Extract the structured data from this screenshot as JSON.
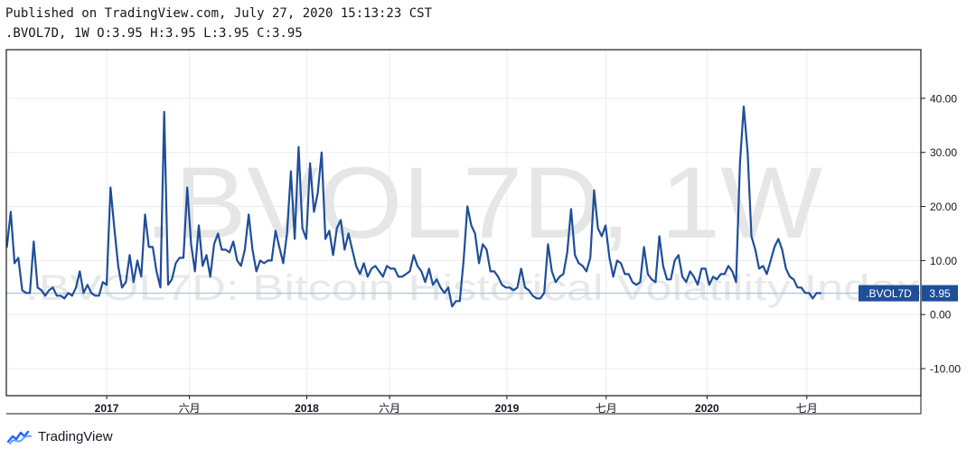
{
  "header": {
    "published": "Published on TradingView.com, July 27, 2020 15:13:23 CST",
    "ohlc": ".BVOL7D, 1W O:3.95 H:3.95 L:3.95 C:3.95"
  },
  "watermark": {
    "big": ".BVOL7D, 1W",
    "small": ".BVOL7D: Bitcoin Historical Volatility Index"
  },
  "brand": {
    "name": "TradingView"
  },
  "colors": {
    "line": "#1f4e99",
    "grid": "#e9ecf2",
    "axis": "#131722",
    "watermark": "#e6e6e6",
    "lastPrice": "#9db7d6",
    "badge": "#1f4e99"
  },
  "chart_data": {
    "type": "line",
    "symbol": ".BVOL7D",
    "interval": "1W",
    "ylim": [
      -15,
      49
    ],
    "y_ticks": [
      40,
      30,
      20,
      10,
      0,
      -10
    ],
    "y_tick_labels": [
      "40.00",
      "30.00",
      "20.00",
      "10.00",
      "0.00",
      "-10.00"
    ],
    "x_ticks": [
      {
        "label": "2017",
        "bold": true,
        "x": "2017-01-01"
      },
      {
        "label": "六月",
        "bold": false,
        "x": "2017-06-01"
      },
      {
        "label": "2018",
        "bold": true,
        "x": "2018-01-01"
      },
      {
        "label": "六月",
        "bold": false,
        "x": "2018-06-01"
      },
      {
        "label": "2019",
        "bold": true,
        "x": "2019-01-01"
      },
      {
        "label": "七月",
        "bold": false,
        "x": "2019-07-01"
      },
      {
        "label": "2020",
        "bold": true,
        "x": "2020-01-01"
      },
      {
        "label": "七月",
        "bold": false,
        "x": "2020-07-01"
      }
    ],
    "last_value": 3.95,
    "last_label": ".BVOL7D",
    "last_value_label": "3.95",
    "series": [
      {
        "values": [
          [
            "2016-07-03",
            12.5
          ],
          [
            "2016-07-10",
            19
          ],
          [
            "2016-07-17",
            9.5
          ],
          [
            "2016-07-24",
            10.5
          ],
          [
            "2016-07-31",
            4.5
          ],
          [
            "2016-08-07",
            4
          ],
          [
            "2016-08-14",
            4
          ],
          [
            "2016-08-21",
            13.5
          ],
          [
            "2016-08-28",
            5
          ],
          [
            "2016-09-04",
            4.5
          ],
          [
            "2016-09-11",
            3.5
          ],
          [
            "2016-09-18",
            4.5
          ],
          [
            "2016-09-25",
            5
          ],
          [
            "2016-10-02",
            3.5
          ],
          [
            "2016-10-09",
            3.5
          ],
          [
            "2016-10-16",
            3
          ],
          [
            "2016-10-23",
            4
          ],
          [
            "2016-10-30",
            3.5
          ],
          [
            "2016-11-06",
            5
          ],
          [
            "2016-11-13",
            8
          ],
          [
            "2016-11-20",
            4
          ],
          [
            "2016-11-27",
            5.5
          ],
          [
            "2016-12-04",
            4
          ],
          [
            "2016-12-11",
            3.5
          ],
          [
            "2016-12-18",
            3.5
          ],
          [
            "2016-12-25",
            6
          ],
          [
            "2017-01-01",
            5.5
          ],
          [
            "2017-01-08",
            23.5
          ],
          [
            "2017-01-15",
            16
          ],
          [
            "2017-01-22",
            9
          ],
          [
            "2017-01-29",
            5
          ],
          [
            "2017-02-05",
            6
          ],
          [
            "2017-02-12",
            11
          ],
          [
            "2017-02-19",
            6
          ],
          [
            "2017-02-26",
            10
          ],
          [
            "2017-03-05",
            7
          ],
          [
            "2017-03-12",
            18.5
          ],
          [
            "2017-03-19",
            12.5
          ],
          [
            "2017-03-26",
            12.5
          ],
          [
            "2017-04-02",
            8
          ],
          [
            "2017-04-09",
            5
          ],
          [
            "2017-04-16",
            37.5
          ],
          [
            "2017-04-23",
            5.5
          ],
          [
            "2017-04-30",
            6.5
          ],
          [
            "2017-05-07",
            9.5
          ],
          [
            "2017-05-14",
            10.5
          ],
          [
            "2017-05-21",
            10.5
          ],
          [
            "2017-05-28",
            23.5
          ],
          [
            "2017-06-04",
            13
          ],
          [
            "2017-06-11",
            8
          ],
          [
            "2017-06-18",
            16.5
          ],
          [
            "2017-06-25",
            9
          ],
          [
            "2017-07-02",
            11
          ],
          [
            "2017-07-09",
            7
          ],
          [
            "2017-07-16",
            13
          ],
          [
            "2017-07-23",
            15
          ],
          [
            "2017-07-30",
            12
          ],
          [
            "2017-08-06",
            12
          ],
          [
            "2017-08-13",
            11.5
          ],
          [
            "2017-08-20",
            13.5
          ],
          [
            "2017-08-27",
            10
          ],
          [
            "2017-09-03",
            9
          ],
          [
            "2017-09-10",
            12
          ],
          [
            "2017-09-17",
            18.5
          ],
          [
            "2017-09-24",
            12
          ],
          [
            "2017-10-01",
            8
          ],
          [
            "2017-10-08",
            10
          ],
          [
            "2017-10-15",
            9.5
          ],
          [
            "2017-10-22",
            10
          ],
          [
            "2017-10-29",
            10
          ],
          [
            "2017-11-05",
            15.5
          ],
          [
            "2017-11-12",
            12.5
          ],
          [
            "2017-11-19",
            9.5
          ],
          [
            "2017-11-26",
            15
          ],
          [
            "2017-12-03",
            26.5
          ],
          [
            "2017-12-10",
            14
          ],
          [
            "2017-12-17",
            31
          ],
          [
            "2017-12-24",
            16
          ],
          [
            "2017-12-31",
            14
          ],
          [
            "2018-01-07",
            28
          ],
          [
            "2018-01-14",
            19
          ],
          [
            "2018-01-21",
            22.5
          ],
          [
            "2018-01-28",
            30
          ],
          [
            "2018-02-04",
            14
          ],
          [
            "2018-02-11",
            15.5
          ],
          [
            "2018-02-18",
            11
          ],
          [
            "2018-02-25",
            16
          ],
          [
            "2018-03-04",
            17.5
          ],
          [
            "2018-03-11",
            12
          ],
          [
            "2018-03-18",
            15
          ],
          [
            "2018-03-25",
            12
          ],
          [
            "2018-04-01",
            9
          ],
          [
            "2018-04-08",
            7.5
          ],
          [
            "2018-04-15",
            9.5
          ],
          [
            "2018-04-22",
            7
          ],
          [
            "2018-04-29",
            8.5
          ],
          [
            "2018-05-06",
            9
          ],
          [
            "2018-05-13",
            8
          ],
          [
            "2018-05-20",
            7
          ],
          [
            "2018-05-27",
            9
          ],
          [
            "2018-06-03",
            8.5
          ],
          [
            "2018-06-10",
            8.5
          ],
          [
            "2018-06-17",
            7
          ],
          [
            "2018-06-24",
            7
          ],
          [
            "2018-07-01",
            7.5
          ],
          [
            "2018-07-08",
            8
          ],
          [
            "2018-07-15",
            11
          ],
          [
            "2018-07-22",
            9
          ],
          [
            "2018-07-29",
            8
          ],
          [
            "2018-08-05",
            6
          ],
          [
            "2018-08-12",
            8.5
          ],
          [
            "2018-08-19",
            5.5
          ],
          [
            "2018-08-26",
            6.5
          ],
          [
            "2018-09-02",
            5
          ],
          [
            "2018-09-09",
            4
          ],
          [
            "2018-09-16",
            5
          ],
          [
            "2018-09-23",
            1.5
          ],
          [
            "2018-09-30",
            2.5
          ],
          [
            "2018-10-07",
            2.5
          ],
          [
            "2018-10-14",
            10
          ],
          [
            "2018-10-21",
            20
          ],
          [
            "2018-10-28",
            16.5
          ],
          [
            "2018-11-04",
            15
          ],
          [
            "2018-11-11",
            9.5
          ],
          [
            "2018-11-18",
            13
          ],
          [
            "2018-11-25",
            12
          ],
          [
            "2018-12-02",
            8
          ],
          [
            "2018-12-09",
            8
          ],
          [
            "2018-12-16",
            7
          ],
          [
            "2018-12-23",
            5.5
          ],
          [
            "2018-12-30",
            5
          ],
          [
            "2019-01-06",
            5
          ],
          [
            "2019-01-13",
            4.5
          ],
          [
            "2019-01-20",
            5
          ],
          [
            "2019-01-27",
            8.5
          ],
          [
            "2019-02-03",
            5
          ],
          [
            "2019-02-10",
            4.5
          ],
          [
            "2019-02-17",
            3.5
          ],
          [
            "2019-02-24",
            3
          ],
          [
            "2019-03-03",
            3
          ],
          [
            "2019-03-10",
            4
          ],
          [
            "2019-03-17",
            13
          ],
          [
            "2019-03-24",
            8
          ],
          [
            "2019-03-31",
            6
          ],
          [
            "2019-04-07",
            7
          ],
          [
            "2019-04-14",
            7.5
          ],
          [
            "2019-04-21",
            11.5
          ],
          [
            "2019-04-28",
            19.5
          ],
          [
            "2019-05-05",
            11
          ],
          [
            "2019-05-12",
            9.5
          ],
          [
            "2019-05-19",
            9
          ],
          [
            "2019-05-26",
            8
          ],
          [
            "2019-06-02",
            10.5
          ],
          [
            "2019-06-09",
            23
          ],
          [
            "2019-06-16",
            16
          ],
          [
            "2019-06-23",
            14.5
          ],
          [
            "2019-06-30",
            16.5
          ],
          [
            "2019-07-07",
            10.5
          ],
          [
            "2019-07-14",
            7
          ],
          [
            "2019-07-21",
            10
          ],
          [
            "2019-07-28",
            9.5
          ],
          [
            "2019-08-04",
            7.5
          ],
          [
            "2019-08-11",
            7.5
          ],
          [
            "2019-08-18",
            6
          ],
          [
            "2019-08-25",
            5.5
          ],
          [
            "2019-09-01",
            6
          ],
          [
            "2019-09-08",
            12.5
          ],
          [
            "2019-09-15",
            7.5
          ],
          [
            "2019-09-22",
            6.5
          ],
          [
            "2019-09-29",
            6
          ],
          [
            "2019-10-06",
            14.5
          ],
          [
            "2019-10-13",
            9
          ],
          [
            "2019-10-20",
            6.5
          ],
          [
            "2019-10-27",
            6.5
          ],
          [
            "2019-11-03",
            10
          ],
          [
            "2019-11-10",
            11
          ],
          [
            "2019-11-17",
            7
          ],
          [
            "2019-11-24",
            6
          ],
          [
            "2019-12-01",
            8
          ],
          [
            "2019-12-08",
            7
          ],
          [
            "2019-12-15",
            5.5
          ],
          [
            "2019-12-22",
            8.5
          ],
          [
            "2019-12-29",
            8.5
          ],
          [
            "2020-01-05",
            5.5
          ],
          [
            "2020-01-12",
            7
          ],
          [
            "2020-01-19",
            6.5
          ],
          [
            "2020-01-26",
            7.5
          ],
          [
            "2020-02-02",
            7.5
          ],
          [
            "2020-02-09",
            9
          ],
          [
            "2020-02-16",
            8
          ],
          [
            "2020-02-23",
            6
          ],
          [
            "2020-03-01",
            28
          ],
          [
            "2020-03-08",
            38.5
          ],
          [
            "2020-03-15",
            30
          ],
          [
            "2020-03-22",
            14.5
          ],
          [
            "2020-03-29",
            12
          ],
          [
            "2020-04-05",
            8.5
          ],
          [
            "2020-04-12",
            9
          ],
          [
            "2020-04-19",
            7.5
          ],
          [
            "2020-04-26",
            10
          ],
          [
            "2020-05-03",
            12.5
          ],
          [
            "2020-05-10",
            14
          ],
          [
            "2020-05-17",
            12
          ],
          [
            "2020-05-24",
            8.5
          ],
          [
            "2020-05-31",
            7
          ],
          [
            "2020-06-07",
            6.5
          ],
          [
            "2020-06-14",
            5
          ],
          [
            "2020-06-21",
            5
          ],
          [
            "2020-06-28",
            4
          ],
          [
            "2020-07-05",
            4
          ],
          [
            "2020-07-12",
            3
          ],
          [
            "2020-07-19",
            4
          ],
          [
            "2020-07-26",
            3.95
          ]
        ]
      }
    ]
  }
}
